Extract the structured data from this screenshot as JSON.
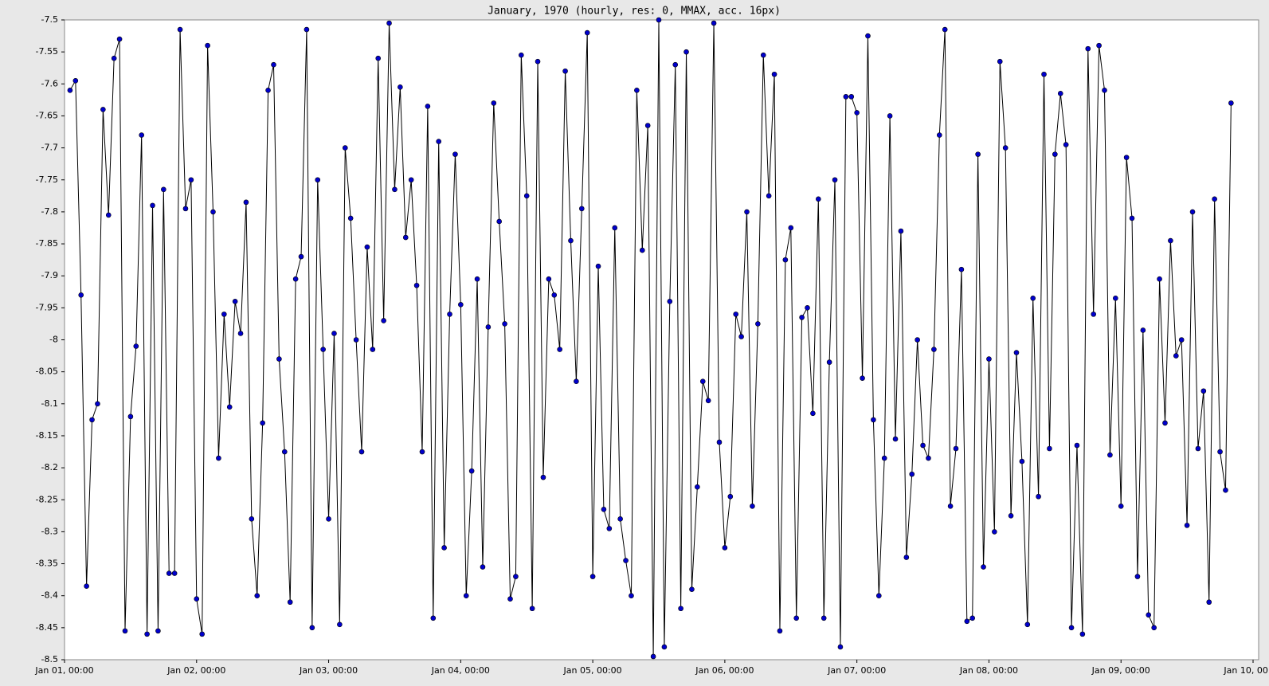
{
  "chart_data": {
    "type": "line",
    "title": "January, 1970 (hourly, res: 0, MMAX, acc. 16px)",
    "x": [
      "1970-01-01T01:00",
      "1970-01-01T02:00",
      "1970-01-01T03:00",
      "1970-01-01T04:00",
      "1970-01-01T05:00",
      "1970-01-01T06:00",
      "1970-01-01T07:00",
      "1970-01-01T08:00",
      "1970-01-01T09:00",
      "1970-01-01T10:00",
      "1970-01-01T11:00",
      "1970-01-01T12:00",
      "1970-01-01T13:00",
      "1970-01-01T14:00",
      "1970-01-01T15:00",
      "1970-01-01T16:00",
      "1970-01-01T17:00",
      "1970-01-01T18:00",
      "1970-01-01T19:00",
      "1970-01-01T20:00",
      "1970-01-01T21:00",
      "1970-01-01T22:00",
      "1970-01-01T23:00",
      "1970-01-02T00:00",
      "1970-01-02T01:00",
      "1970-01-02T02:00",
      "1970-01-02T03:00",
      "1970-01-02T04:00",
      "1970-01-02T05:00",
      "1970-01-02T06:00",
      "1970-01-02T07:00",
      "1970-01-02T08:00",
      "1970-01-02T09:00",
      "1970-01-02T10:00",
      "1970-01-02T11:00",
      "1970-01-02T12:00",
      "1970-01-02T13:00",
      "1970-01-02T14:00",
      "1970-01-02T15:00",
      "1970-01-02T16:00",
      "1970-01-02T17:00",
      "1970-01-02T18:00",
      "1970-01-02T19:00",
      "1970-01-02T20:00",
      "1970-01-02T21:00",
      "1970-01-02T22:00",
      "1970-01-02T23:00",
      "1970-01-03T00:00",
      "1970-01-03T01:00",
      "1970-01-03T02:00",
      "1970-01-03T03:00",
      "1970-01-03T04:00",
      "1970-01-03T05:00",
      "1970-01-03T06:00",
      "1970-01-03T07:00",
      "1970-01-03T08:00",
      "1970-01-03T09:00",
      "1970-01-03T10:00",
      "1970-01-03T11:00",
      "1970-01-03T12:00",
      "1970-01-03T13:00",
      "1970-01-03T14:00",
      "1970-01-03T15:00",
      "1970-01-03T16:00",
      "1970-01-03T17:00",
      "1970-01-03T18:00",
      "1970-01-03T19:00",
      "1970-01-03T20:00",
      "1970-01-03T21:00",
      "1970-01-03T22:00",
      "1970-01-03T23:00",
      "1970-01-04T00:00",
      "1970-01-04T01:00",
      "1970-01-04T02:00",
      "1970-01-04T03:00",
      "1970-01-04T04:00",
      "1970-01-04T05:00",
      "1970-01-04T06:00",
      "1970-01-04T07:00",
      "1970-01-04T08:00",
      "1970-01-04T09:00",
      "1970-01-04T10:00",
      "1970-01-04T11:00",
      "1970-01-04T12:00",
      "1970-01-04T13:00",
      "1970-01-04T14:00",
      "1970-01-04T15:00",
      "1970-01-04T16:00",
      "1970-01-04T17:00",
      "1970-01-04T18:00",
      "1970-01-04T19:00",
      "1970-01-04T20:00",
      "1970-01-04T21:00",
      "1970-01-04T22:00",
      "1970-01-04T23:00",
      "1970-01-05T00:00",
      "1970-01-05T01:00",
      "1970-01-05T02:00",
      "1970-01-05T03:00",
      "1970-01-05T04:00",
      "1970-01-05T05:00",
      "1970-01-05T06:00",
      "1970-01-05T07:00",
      "1970-01-05T08:00",
      "1970-01-05T09:00",
      "1970-01-05T10:00",
      "1970-01-05T11:00",
      "1970-01-05T12:00",
      "1970-01-05T13:00",
      "1970-01-05T14:00",
      "1970-01-05T15:00",
      "1970-01-05T16:00",
      "1970-01-05T17:00",
      "1970-01-05T18:00",
      "1970-01-05T19:00",
      "1970-01-05T20:00",
      "1970-01-05T21:00",
      "1970-01-05T22:00",
      "1970-01-05T23:00",
      "1970-01-06T00:00",
      "1970-01-06T01:00",
      "1970-01-06T02:00",
      "1970-01-06T03:00",
      "1970-01-06T04:00",
      "1970-01-06T05:00",
      "1970-01-06T06:00",
      "1970-01-06T07:00",
      "1970-01-06T08:00",
      "1970-01-06T09:00",
      "1970-01-06T10:00",
      "1970-01-06T11:00",
      "1970-01-06T12:00",
      "1970-01-06T13:00",
      "1970-01-06T14:00",
      "1970-01-06T15:00",
      "1970-01-06T16:00",
      "1970-01-06T17:00",
      "1970-01-06T18:00",
      "1970-01-06T19:00",
      "1970-01-06T20:00",
      "1970-01-06T21:00",
      "1970-01-06T22:00",
      "1970-01-06T23:00",
      "1970-01-07T00:00",
      "1970-01-07T01:00",
      "1970-01-07T02:00",
      "1970-01-07T03:00",
      "1970-01-07T04:00",
      "1970-01-07T05:00",
      "1970-01-07T06:00",
      "1970-01-07T07:00",
      "1970-01-07T08:00",
      "1970-01-07T09:00",
      "1970-01-07T10:00",
      "1970-01-07T11:00",
      "1970-01-07T12:00",
      "1970-01-07T13:00",
      "1970-01-07T14:00",
      "1970-01-07T15:00",
      "1970-01-07T16:00",
      "1970-01-07T17:00",
      "1970-01-07T18:00",
      "1970-01-07T19:00",
      "1970-01-07T20:00",
      "1970-01-07T21:00",
      "1970-01-07T22:00",
      "1970-01-07T23:00",
      "1970-01-08T00:00",
      "1970-01-08T01:00",
      "1970-01-08T02:00",
      "1970-01-08T03:00",
      "1970-01-08T04:00",
      "1970-01-08T05:00",
      "1970-01-08T06:00",
      "1970-01-08T07:00",
      "1970-01-08T08:00",
      "1970-01-08T09:00",
      "1970-01-08T10:00",
      "1970-01-08T11:00",
      "1970-01-08T12:00",
      "1970-01-08T13:00",
      "1970-01-08T14:00",
      "1970-01-08T15:00",
      "1970-01-08T16:00",
      "1970-01-08T17:00",
      "1970-01-08T18:00",
      "1970-01-08T19:00",
      "1970-01-08T20:00",
      "1970-01-08T21:00",
      "1970-01-08T22:00",
      "1970-01-08T23:00",
      "1970-01-09T00:00",
      "1970-01-09T01:00",
      "1970-01-09T02:00",
      "1970-01-09T03:00",
      "1970-01-09T04:00",
      "1970-01-09T05:00",
      "1970-01-09T06:00",
      "1970-01-09T07:00",
      "1970-01-09T08:00",
      "1970-01-09T09:00",
      "1970-01-09T10:00",
      "1970-01-09T11:00",
      "1970-01-09T12:00",
      "1970-01-09T13:00",
      "1970-01-09T14:00",
      "1970-01-09T15:00",
      "1970-01-09T16:00",
      "1970-01-09T17:00",
      "1970-01-09T18:00",
      "1970-01-09T19:00",
      "1970-01-09T20:00"
    ],
    "series": [
      {
        "color": "#0000cc",
        "values": [
          -7.61,
          -7.595,
          -7.93,
          -8.385,
          -8.125,
          -8.1,
          -7.64,
          -7.805,
          -7.56,
          -7.53,
          -8.455,
          -8.12,
          -8.01,
          -7.68,
          -8.46,
          -7.79,
          -8.455,
          -7.765,
          -8.365,
          -8.365,
          -7.515,
          -7.795,
          -7.75,
          -8.405,
          -8.46,
          -7.54,
          -7.8,
          -8.185,
          -7.96,
          -8.105,
          -7.94,
          -7.99,
          -7.785,
          -8.28,
          -8.4,
          -8.13,
          -7.61,
          -7.57,
          -8.03,
          -8.175,
          -8.41,
          -7.905,
          -7.87,
          -7.515,
          -8.45,
          -7.75,
          -8.015,
          -8.28,
          -7.99,
          -8.445,
          -7.7,
          -7.81,
          -8.0,
          -8.175,
          -7.855,
          -8.015,
          -7.56,
          -7.97,
          -7.505,
          -7.765,
          -7.605,
          -7.84,
          -7.75,
          -7.915,
          -8.175,
          -7.635,
          -8.435,
          -7.69,
          -8.325,
          -7.96,
          -7.71,
          -7.945,
          -8.4,
          -8.205,
          -7.905,
          -8.355,
          -7.98,
          -7.63,
          -7.815,
          -7.975,
          -8.405,
          -8.37,
          -7.555,
          -7.775,
          -8.42,
          -7.565,
          -8.215,
          -7.905,
          -7.93,
          -8.015,
          -7.58,
          -7.845,
          -8.065,
          -7.795,
          -7.52,
          -8.37,
          -7.885,
          -8.265,
          -8.295,
          -7.825,
          -8.28,
          -8.345,
          -8.4,
          -7.61,
          -7.86,
          -7.665,
          -8.495,
          -7.5,
          -8.48,
          -7.94,
          -7.57,
          -8.42,
          -7.55,
          -8.39,
          -8.23,
          -8.065,
          -8.095,
          -7.505,
          -8.16,
          -8.325,
          -8.245,
          -7.96,
          -7.995,
          -7.8,
          -8.26,
          -7.975,
          -7.555,
          -7.775,
          -7.585,
          -8.455,
          -7.875,
          -7.825,
          -8.435,
          -7.965,
          -7.95,
          -8.115,
          -7.78,
          -8.435,
          -8.035,
          -7.75,
          -8.48,
          -7.62,
          -7.62,
          -7.645,
          -8.06,
          -7.525,
          -8.125,
          -8.4,
          -8.185,
          -7.65,
          -8.155,
          -7.83,
          -8.34,
          -8.21,
          -8.0,
          -8.165,
          -8.185,
          -8.015,
          -7.68,
          -7.515,
          -8.26,
          -8.17,
          -7.89,
          -8.44,
          -8.435,
          -7.71,
          -8.355,
          -8.03,
          -8.3,
          -7.565,
          -7.7,
          -8.275,
          -8.02,
          -8.19,
          -8.445,
          -7.935,
          -8.245,
          -7.585,
          -8.17,
          -7.71,
          -7.615,
          -7.695,
          -8.45,
          -8.165,
          -8.46,
          -7.545,
          -7.96,
          -7.54,
          -7.61,
          -8.18,
          -7.935,
          -8.26,
          -7.715,
          -7.81,
          -8.37,
          -7.985,
          -8.43,
          -8.45,
          -7.905,
          -8.13,
          -7.845,
          -8.025,
          -8.0,
          -8.29,
          -7.8,
          -8.17,
          -8.08,
          -8.41,
          -7.78,
          -8.175,
          -8.235,
          -7.63
        ]
      }
    ],
    "xlim": [
      "1970-01-01T00:00",
      "1970-01-10T00:00"
    ],
    "xticks": [
      {
        "value": "1970-01-01T00:00",
        "label": "Jan 01, 00:00"
      },
      {
        "value": "1970-01-02T00:00",
        "label": "Jan 02, 00:00"
      },
      {
        "value": "1970-01-03T00:00",
        "label": "Jan 03, 00:00"
      },
      {
        "value": "1970-01-04T00:00",
        "label": "Jan 04, 00:00"
      },
      {
        "value": "1970-01-05T00:00",
        "label": "Jan 05, 00:00"
      },
      {
        "value": "1970-01-06T00:00",
        "label": "Jan 06, 00:00"
      },
      {
        "value": "1970-01-07T00:00",
        "label": "Jan 07, 00:00"
      },
      {
        "value": "1970-01-08T00:00",
        "label": "Jan 08, 00:00"
      },
      {
        "value": "1970-01-09T00:00",
        "label": "Jan 09, 00:00"
      },
      {
        "value": "1970-01-10T00:00",
        "label": "Jan 10, 00:00"
      }
    ],
    "ylim": [
      -8.5,
      -7.5
    ],
    "yticks": [
      -7.5,
      -7.55,
      -7.6,
      -7.65,
      -7.7,
      -7.75,
      -7.8,
      -7.85,
      -7.9,
      -7.95,
      -8,
      -8.05,
      -8.1,
      -8.15,
      -8.2,
      -8.25,
      -8.3,
      -8.35,
      -8.4,
      -8.45,
      -8.5
    ],
    "grid": false
  }
}
